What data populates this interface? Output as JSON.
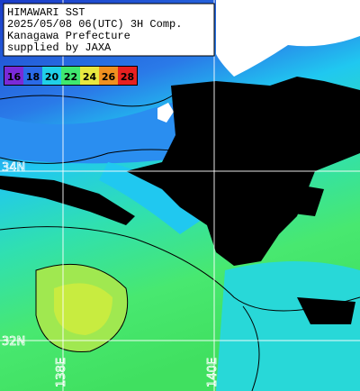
{
  "header": {
    "lines": [
      "HIMAWARI SST",
      "2025/05/08 06(UTC) 3H Comp.",
      "Kanagawa Prefecture",
      "supplied by JAXA"
    ]
  },
  "legend": {
    "labels": [
      16,
      18,
      20,
      22,
      24,
      26,
      28
    ]
  },
  "grid_labels": {
    "latitudes": [
      "34N",
      "32N"
    ],
    "longitudes": [
      "138E",
      "140E"
    ]
  }
}
